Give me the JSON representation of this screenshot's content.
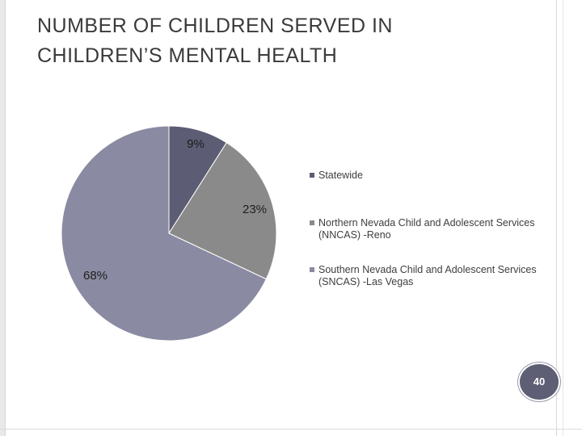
{
  "slide": {
    "title_line1": "Number of Children Served in",
    "title_line2": "Children’s Mental Health",
    "page_number": "40"
  },
  "chart_data": {
    "type": "pie",
    "title": "",
    "categories": [
      "Statewide",
      "Northern Nevada Child and Adolescent Services (NNCAS) -Reno",
      "Southern Nevada Child and Adolescent Services (SNCAS) -Las Vegas"
    ],
    "values": [
      9,
      23,
      68
    ],
    "data_labels": [
      "9%",
      "23%",
      "68%"
    ],
    "colors": [
      "#5c5c74",
      "#8a8a8a",
      "#8a8aa2"
    ],
    "legend_position": "right"
  }
}
